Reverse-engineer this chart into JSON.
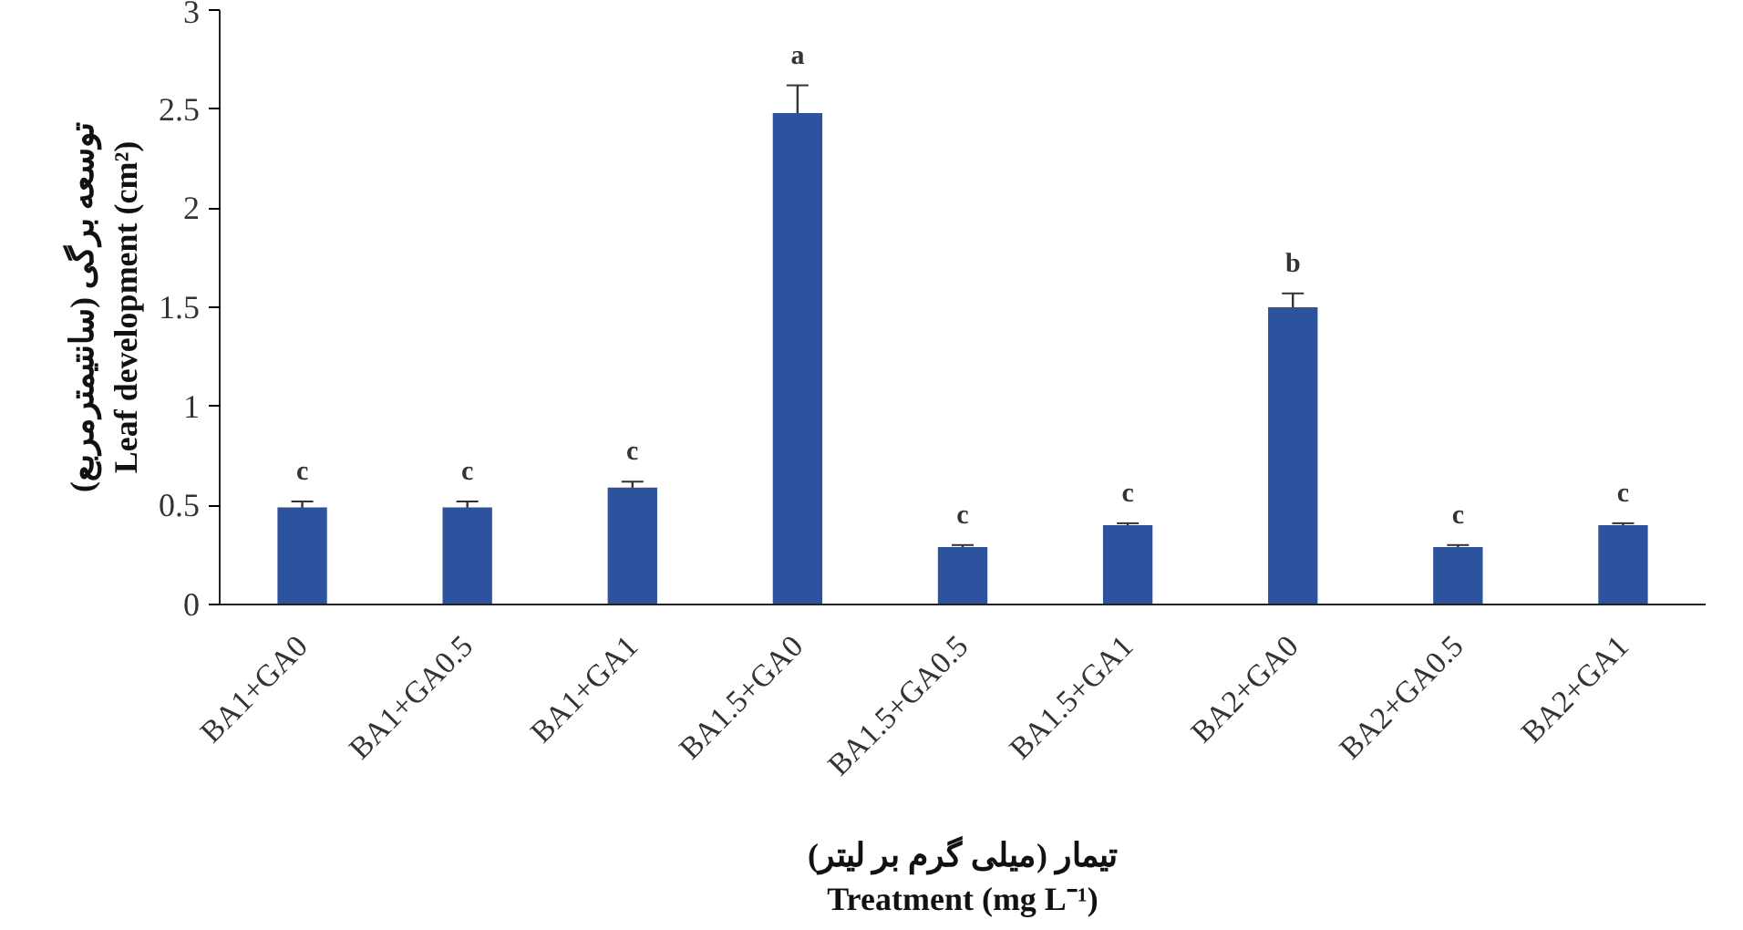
{
  "chart_data": {
    "type": "bar",
    "categories": [
      "BA1+GA0",
      "BA1+GA0.5",
      "BA1+GA1",
      "BA1.5+GA0",
      "BA1.5+GA0.5",
      "BA1.5+GA1",
      "BA2+GA0",
      "BA2+GA0.5",
      "BA2+GA1"
    ],
    "values": [
      0.49,
      0.49,
      0.59,
      2.48,
      0.29,
      0.4,
      1.5,
      0.29,
      0.4
    ],
    "errors": [
      0.03,
      0.03,
      0.03,
      0.14,
      0.01,
      0.01,
      0.07,
      0.01,
      0.01
    ],
    "color": "#2e539e",
    "xlabel": "تیمار (میلی گرم بر لیتر)\nTreatment (mg L⁻¹)",
    "ylabel": "توسعه برگی (سانتیمترمربع)\nLeaf development (cm²)",
    "ylim": [
      0,
      3
    ],
    "yticks": [
      0,
      0.5,
      1,
      1.5,
      2,
      2.5,
      3
    ],
    "grid": false,
    "annotations": [
      {
        "text": "c",
        "x": "BA1+GA0",
        "y": 0.49
      },
      {
        "text": "c",
        "x": "BA1+GA0.5",
        "y": 0.49
      },
      {
        "text": "c",
        "x": "BA1+GA1",
        "y": 0.59
      },
      {
        "text": "a",
        "x": "BA1.5+GA0",
        "y": 2.48
      },
      {
        "text": "c",
        "x": "BA1.5+GA0.5",
        "y": 0.29
      },
      {
        "text": "c",
        "x": "BA1.5+GA1",
        "y": 0.4
      },
      {
        "text": "b",
        "x": "BA2+GA0",
        "y": 1.5
      },
      {
        "text": "c",
        "x": "BA2+GA0.5",
        "y": 0.29
      },
      {
        "text": "c",
        "x": "BA2+GA1",
        "y": 0.4
      }
    ]
  }
}
